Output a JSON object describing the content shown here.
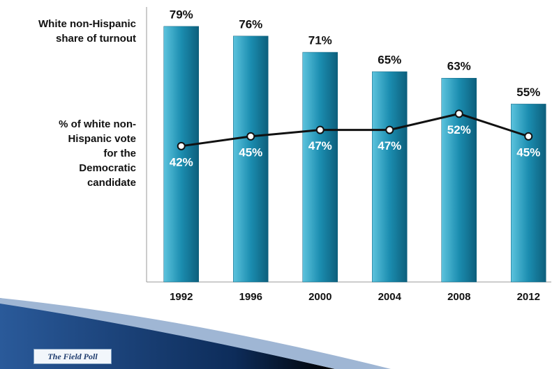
{
  "chart_data": {
    "type": "bar",
    "categories": [
      "1992",
      "1996",
      "2000",
      "2004",
      "2008",
      "2012"
    ],
    "series": [
      {
        "name": "White non-Hispanic share of turnout",
        "type": "bar",
        "color": "#1b8db0",
        "values": [
          79,
          76,
          71,
          65,
          63,
          55
        ],
        "value_labels": [
          "79%",
          "76%",
          "71%",
          "65%",
          "63%",
          "55%"
        ]
      },
      {
        "name": "% of white non-Hispanic vote for the Democratic candidate",
        "type": "line",
        "color": "#111111",
        "values": [
          42,
          45,
          47,
          47,
          52,
          45
        ],
        "value_labels": [
          "42%",
          "45%",
          "47%",
          "47%",
          "52%",
          "45%"
        ]
      }
    ],
    "ylim": [
      0,
      85
    ],
    "source": "The Field Poll"
  }
}
